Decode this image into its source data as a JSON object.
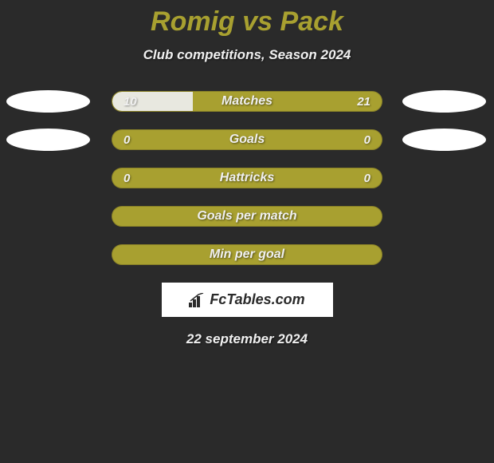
{
  "title": "Romig vs Pack",
  "subtitle": "Club competitions, Season 2024",
  "stats": [
    {
      "label": "Matches",
      "left_value": "10",
      "right_value": "21",
      "left_ratio": 0.3,
      "show_avatars": true,
      "bar_bg": "#a8a030",
      "fill_bg": "#e8e8e0"
    },
    {
      "label": "Goals",
      "left_value": "0",
      "right_value": "0",
      "left_ratio": 0,
      "show_avatars": true,
      "bar_bg": "#a8a030",
      "fill_bg": "#e8e8e0"
    },
    {
      "label": "Hattricks",
      "left_value": "0",
      "right_value": "0",
      "left_ratio": 0,
      "show_avatars": false,
      "bar_bg": "#a8a030",
      "fill_bg": "#e8e8e0"
    },
    {
      "label": "Goals per match",
      "left_value": "",
      "right_value": "",
      "left_ratio": 0,
      "show_avatars": false,
      "bar_bg": "#a8a030",
      "fill_bg": "#e8e8e0"
    },
    {
      "label": "Min per goal",
      "left_value": "",
      "right_value": "",
      "left_ratio": 0,
      "show_avatars": false,
      "bar_bg": "#a8a030",
      "fill_bg": "#e8e8e0"
    }
  ],
  "logo": {
    "text": "FcTables.com",
    "bg_color": "#ffffff",
    "text_color": "#2a2a2a"
  },
  "date": "22 september 2024",
  "colors": {
    "background": "#2a2a2a",
    "title_color": "#a8a030",
    "text_color": "#f0f0f0",
    "avatar_bg": "#ffffff"
  }
}
